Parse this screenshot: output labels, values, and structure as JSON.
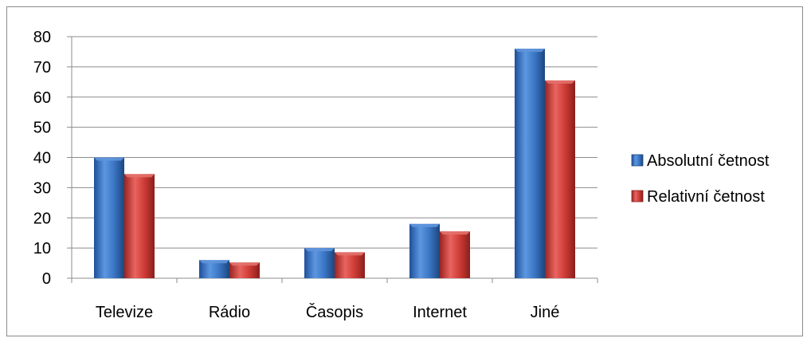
{
  "chart_data": {
    "type": "bar",
    "categories": [
      "Televize",
      "Rádio",
      "Časopis",
      "Internet",
      "Jiné"
    ],
    "series": [
      {
        "name": "Absolutní četnost",
        "values": [
          40,
          6,
          10,
          18,
          76
        ],
        "color": "#3a75c4"
      },
      {
        "name": "Relativní četnost",
        "values": [
          34.5,
          5.2,
          8.6,
          15.5,
          65.5
        ],
        "color": "#d23f3a"
      }
    ],
    "yticks": [
      "0",
      "10",
      "20",
      "30",
      "40",
      "50",
      "60",
      "70",
      "80"
    ],
    "ylim": [
      0,
      80
    ],
    "grid": true,
    "legend_position": "right"
  }
}
